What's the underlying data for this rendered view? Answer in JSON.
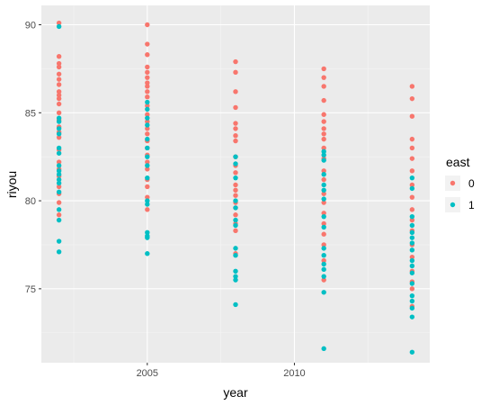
{
  "chart_data": {
    "type": "scatter",
    "xlabel": "year",
    "ylabel": "riyou",
    "x_ticks": [
      2005,
      2010
    ],
    "y_ticks": [
      75,
      80,
      85,
      90
    ],
    "xlim": [
      2001.4,
      2014.6
    ],
    "ylim": [
      70.8,
      91.1
    ],
    "grid": true,
    "legend": {
      "title": "east",
      "placement": "right",
      "entries": [
        "0",
        "1"
      ]
    },
    "series": [
      {
        "name": "0",
        "color": "#F8766D",
        "points": [
          [
            2002,
            90.1
          ],
          [
            2002,
            88.2
          ],
          [
            2002,
            87.8
          ],
          [
            2002,
            87.6
          ],
          [
            2002,
            87.2
          ],
          [
            2002,
            86.9
          ],
          [
            2002,
            86.6
          ],
          [
            2002,
            86.2
          ],
          [
            2002,
            86.0
          ],
          [
            2002,
            85.8
          ],
          [
            2002,
            85.5
          ],
          [
            2002,
            85.0
          ],
          [
            2002,
            84.6
          ],
          [
            2002,
            84.2
          ],
          [
            2002,
            83.9
          ],
          [
            2002,
            83.6
          ],
          [
            2002,
            82.9
          ],
          [
            2002,
            82.2
          ],
          [
            2002,
            81.8
          ],
          [
            2002,
            81.4
          ],
          [
            2002,
            80.8
          ],
          [
            2002,
            80.4
          ],
          [
            2002,
            79.9
          ],
          [
            2002,
            79.2
          ],
          [
            2005,
            90.0
          ],
          [
            2005,
            88.9
          ],
          [
            2005,
            88.3
          ],
          [
            2005,
            87.6
          ],
          [
            2005,
            87.3
          ],
          [
            2005,
            87.0
          ],
          [
            2005,
            86.7
          ],
          [
            2005,
            86.5
          ],
          [
            2005,
            86.2
          ],
          [
            2005,
            85.9
          ],
          [
            2005,
            85.4
          ],
          [
            2005,
            84.9
          ],
          [
            2005,
            84.5
          ],
          [
            2005,
            84.1
          ],
          [
            2005,
            83.8
          ],
          [
            2005,
            83.4
          ],
          [
            2005,
            83.0
          ],
          [
            2005,
            82.6
          ],
          [
            2005,
            82.2
          ],
          [
            2005,
            81.8
          ],
          [
            2005,
            81.2
          ],
          [
            2005,
            80.8
          ],
          [
            2005,
            80.2
          ],
          [
            2005,
            79.5
          ],
          [
            2008,
            87.9
          ],
          [
            2008,
            87.3
          ],
          [
            2008,
            86.2
          ],
          [
            2008,
            85.3
          ],
          [
            2008,
            84.4
          ],
          [
            2008,
            84.1
          ],
          [
            2008,
            83.7
          ],
          [
            2008,
            83.4
          ],
          [
            2008,
            82.5
          ],
          [
            2008,
            82.0
          ],
          [
            2008,
            81.6
          ],
          [
            2008,
            80.9
          ],
          [
            2008,
            80.6
          ],
          [
            2008,
            80.3
          ],
          [
            2008,
            79.9
          ],
          [
            2008,
            79.6
          ],
          [
            2008,
            79.2
          ],
          [
            2008,
            78.7
          ],
          [
            2008,
            78.3
          ],
          [
            2008,
            77.0
          ],
          [
            2011,
            87.5
          ],
          [
            2011,
            87.0
          ],
          [
            2011,
            86.5
          ],
          [
            2011,
            85.7
          ],
          [
            2011,
            84.9
          ],
          [
            2011,
            84.5
          ],
          [
            2011,
            84.1
          ],
          [
            2011,
            83.8
          ],
          [
            2011,
            83.5
          ],
          [
            2011,
            83.0
          ],
          [
            2011,
            82.4
          ],
          [
            2011,
            81.7
          ],
          [
            2011,
            81.2
          ],
          [
            2011,
            80.4
          ],
          [
            2011,
            79.9
          ],
          [
            2011,
            79.3
          ],
          [
            2011,
            78.7
          ],
          [
            2011,
            78.1
          ],
          [
            2011,
            77.5
          ],
          [
            2011,
            76.6
          ],
          [
            2011,
            75.5
          ],
          [
            2014,
            86.5
          ],
          [
            2014,
            85.8
          ],
          [
            2014,
            84.8
          ],
          [
            2014,
            83.5
          ],
          [
            2014,
            83.0
          ],
          [
            2014,
            82.4
          ],
          [
            2014,
            81.7
          ],
          [
            2014,
            80.9
          ],
          [
            2014,
            80.2
          ],
          [
            2014,
            79.5
          ],
          [
            2014,
            78.9
          ],
          [
            2014,
            78.3
          ],
          [
            2014,
            77.5
          ],
          [
            2014,
            76.8
          ],
          [
            2014,
            76.0
          ],
          [
            2014,
            75.4
          ],
          [
            2014,
            75.0
          ],
          [
            2014,
            74.0
          ]
        ]
      },
      {
        "name": "1",
        "color": "#00BFC4",
        "points": [
          [
            2002,
            89.9
          ],
          [
            2002,
            84.7
          ],
          [
            2002,
            84.5
          ],
          [
            2002,
            84.1
          ],
          [
            2002,
            83.8
          ],
          [
            2002,
            83.0
          ],
          [
            2002,
            82.7
          ],
          [
            2002,
            82.0
          ],
          [
            2002,
            81.7
          ],
          [
            2002,
            81.5
          ],
          [
            2002,
            81.2
          ],
          [
            2002,
            81.0
          ],
          [
            2002,
            80.5
          ],
          [
            2002,
            79.5
          ],
          [
            2002,
            78.9
          ],
          [
            2002,
            77.7
          ],
          [
            2002,
            77.1
          ],
          [
            2005,
            85.6
          ],
          [
            2005,
            85.2
          ],
          [
            2005,
            84.7
          ],
          [
            2005,
            84.3
          ],
          [
            2005,
            83.5
          ],
          [
            2005,
            83.0
          ],
          [
            2005,
            82.5
          ],
          [
            2005,
            82.0
          ],
          [
            2005,
            81.3
          ],
          [
            2005,
            80.0
          ],
          [
            2005,
            79.8
          ],
          [
            2005,
            78.2
          ],
          [
            2005,
            78.0
          ],
          [
            2005,
            77.9
          ],
          [
            2005,
            77.0
          ],
          [
            2008,
            82.5
          ],
          [
            2008,
            82.1
          ],
          [
            2008,
            81.3
          ],
          [
            2008,
            80.0
          ],
          [
            2008,
            79.6
          ],
          [
            2008,
            78.9
          ],
          [
            2008,
            78.6
          ],
          [
            2008,
            77.3
          ],
          [
            2008,
            76.9
          ],
          [
            2008,
            76.0
          ],
          [
            2008,
            75.7
          ],
          [
            2008,
            75.5
          ],
          [
            2008,
            74.1
          ],
          [
            2011,
            82.8
          ],
          [
            2011,
            82.6
          ],
          [
            2011,
            82.3
          ],
          [
            2011,
            81.5
          ],
          [
            2011,
            80.9
          ],
          [
            2011,
            80.6
          ],
          [
            2011,
            80.1
          ],
          [
            2011,
            79.1
          ],
          [
            2011,
            78.5
          ],
          [
            2011,
            77.3
          ],
          [
            2011,
            76.9
          ],
          [
            2011,
            76.4
          ],
          [
            2011,
            76.1
          ],
          [
            2011,
            75.7
          ],
          [
            2011,
            74.8
          ],
          [
            2011,
            71.6
          ],
          [
            2014,
            81.3
          ],
          [
            2014,
            80.7
          ],
          [
            2014,
            79.1
          ],
          [
            2014,
            78.6
          ],
          [
            2014,
            78.2
          ],
          [
            2014,
            77.9
          ],
          [
            2014,
            77.6
          ],
          [
            2014,
            77.2
          ],
          [
            2014,
            76.6
          ],
          [
            2014,
            76.3
          ],
          [
            2014,
            75.9
          ],
          [
            2014,
            75.3
          ],
          [
            2014,
            74.6
          ],
          [
            2014,
            74.3
          ],
          [
            2014,
            73.9
          ],
          [
            2014,
            73.4
          ],
          [
            2014,
            71.4
          ]
        ]
      }
    ]
  }
}
